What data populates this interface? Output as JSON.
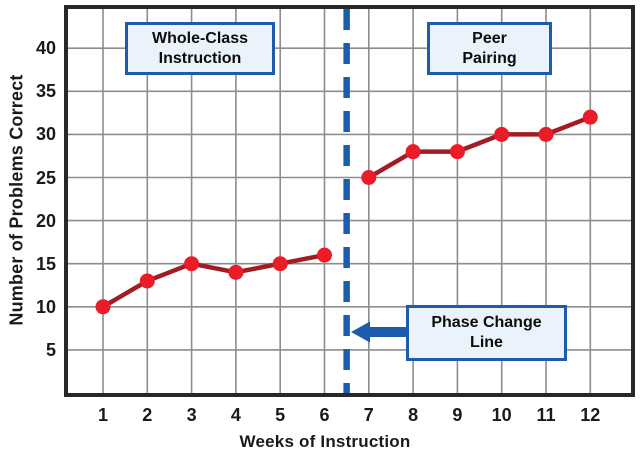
{
  "chart_data": {
    "type": "line",
    "title": "",
    "xlabel": "Weeks of Instruction",
    "ylabel": "Number of Problems Correct",
    "x_ticks": [
      1,
      2,
      3,
      4,
      5,
      6,
      7,
      8,
      9,
      10,
      11,
      12
    ],
    "y_ticks": [
      5,
      10,
      15,
      20,
      25,
      30,
      35,
      40
    ],
    "ylim": [
      0,
      45
    ],
    "xlim": [
      0,
      13
    ],
    "grid": true,
    "legend": "none",
    "phase_change_x": 6.5,
    "series": [
      {
        "name": "Whole-Class Instruction",
        "x": [
          1,
          2,
          3,
          4,
          5,
          6
        ],
        "values": [
          10,
          13,
          15,
          14,
          15,
          16
        ]
      },
      {
        "name": "Peer Pairing",
        "x": [
          7,
          8,
          9,
          10,
          11,
          12
        ],
        "values": [
          25,
          28,
          28,
          30,
          30,
          32
        ]
      }
    ],
    "annotations": [
      {
        "id": "whole_class",
        "line1": "Whole-Class",
        "line2": "Instruction"
      },
      {
        "id": "peer",
        "line1": "Peer",
        "line2": "Pairing"
      },
      {
        "id": "phase_change",
        "line1": "Phase Change",
        "line2": "Line",
        "arrow": "points-left-to-dashed-line"
      }
    ]
  },
  "colors": {
    "marker": "#e91c27",
    "series_line": "#a11d24",
    "phase_line_blue": "#1d5cad",
    "callout_border": "#1d5cad",
    "callout_fill": "#eaf2fb",
    "grid": "#8d8d8d",
    "axis_border": "#282828",
    "text": "#1a1a1a"
  }
}
